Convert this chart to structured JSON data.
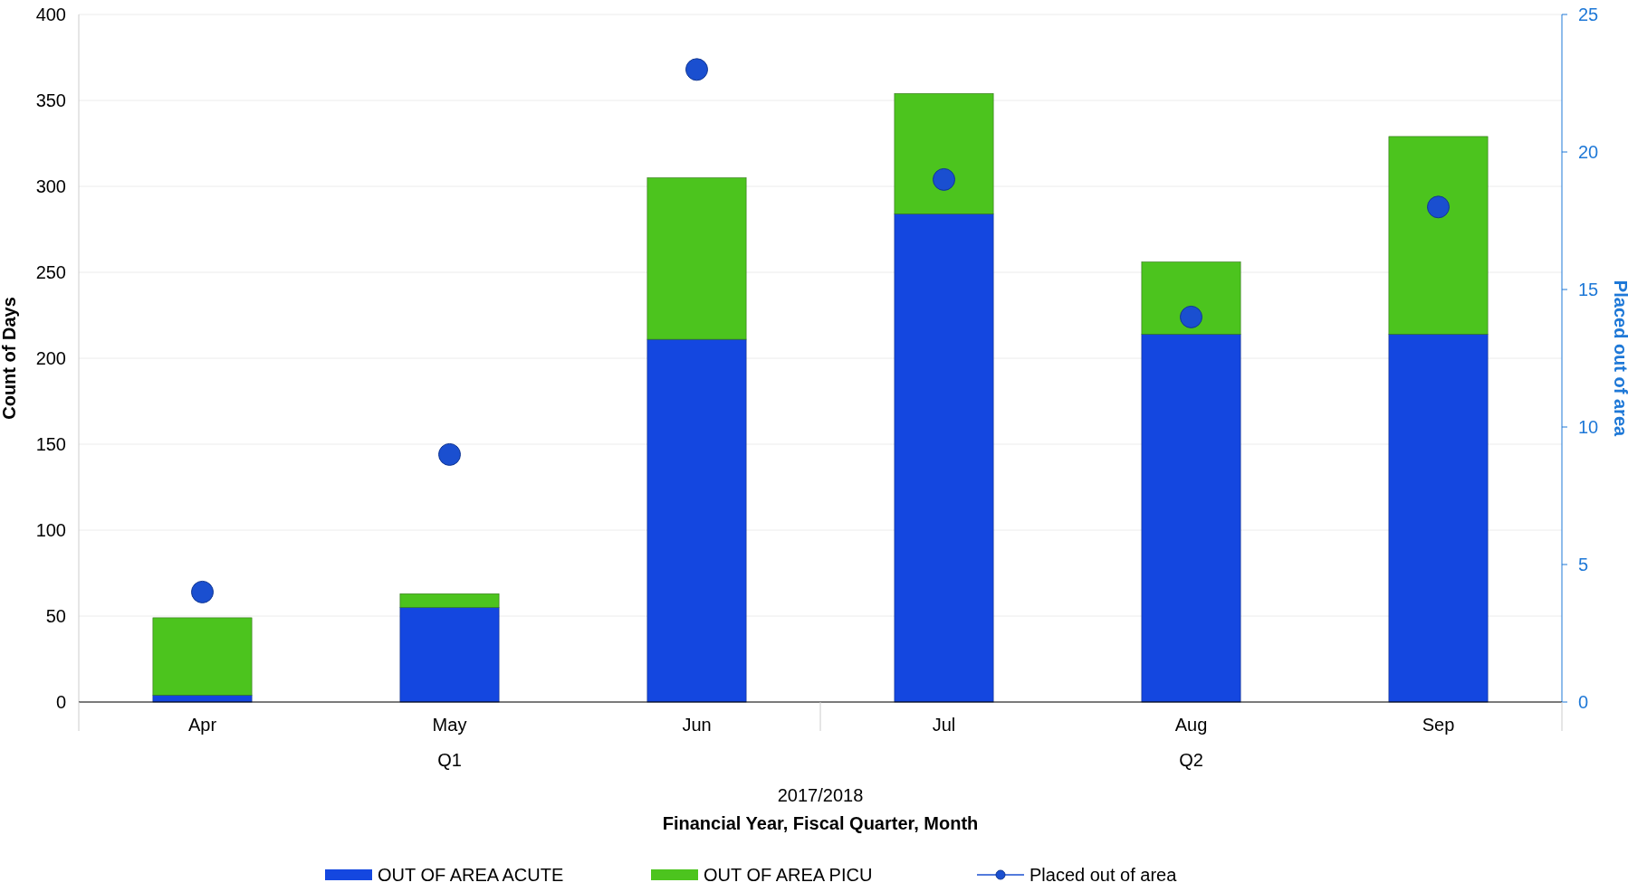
{
  "chart_data": {
    "type": "bar",
    "stacked": true,
    "xlabel": "Financial Year, Fiscal Quarter, Month",
    "ylabel": "Count of Days",
    "y2label": "Placed out of area",
    "categories": [
      "Apr",
      "May",
      "Jun",
      "Jul",
      "Aug",
      "Sep"
    ],
    "series": [
      {
        "name": "OUT OF AREA ACUTE",
        "color": "#1447e0",
        "values": [
          4,
          55,
          211,
          284,
          214,
          214
        ]
      },
      {
        "name": "OUT OF AREA PICU",
        "color": "#4cc41e",
        "values": [
          45,
          8,
          94,
          70,
          42,
          115
        ]
      },
      {
        "name": "Placed out of area",
        "type": "scatter",
        "axis": "y2",
        "marker": "circle",
        "color": "#1a4fd0",
        "values": [
          4,
          9,
          23,
          19,
          14,
          18
        ]
      }
    ],
    "ylim": [
      0,
      400
    ],
    "yticks": [
      0,
      50,
      100,
      150,
      200,
      250,
      300,
      350,
      400
    ],
    "y2lim": [
      0,
      25
    ],
    "y2ticks": [
      0,
      5,
      10,
      15,
      20,
      25
    ],
    "grid": "y",
    "legend": "bottom",
    "annotations": [
      "Q1",
      "Q2",
      "2017/2018"
    ]
  }
}
